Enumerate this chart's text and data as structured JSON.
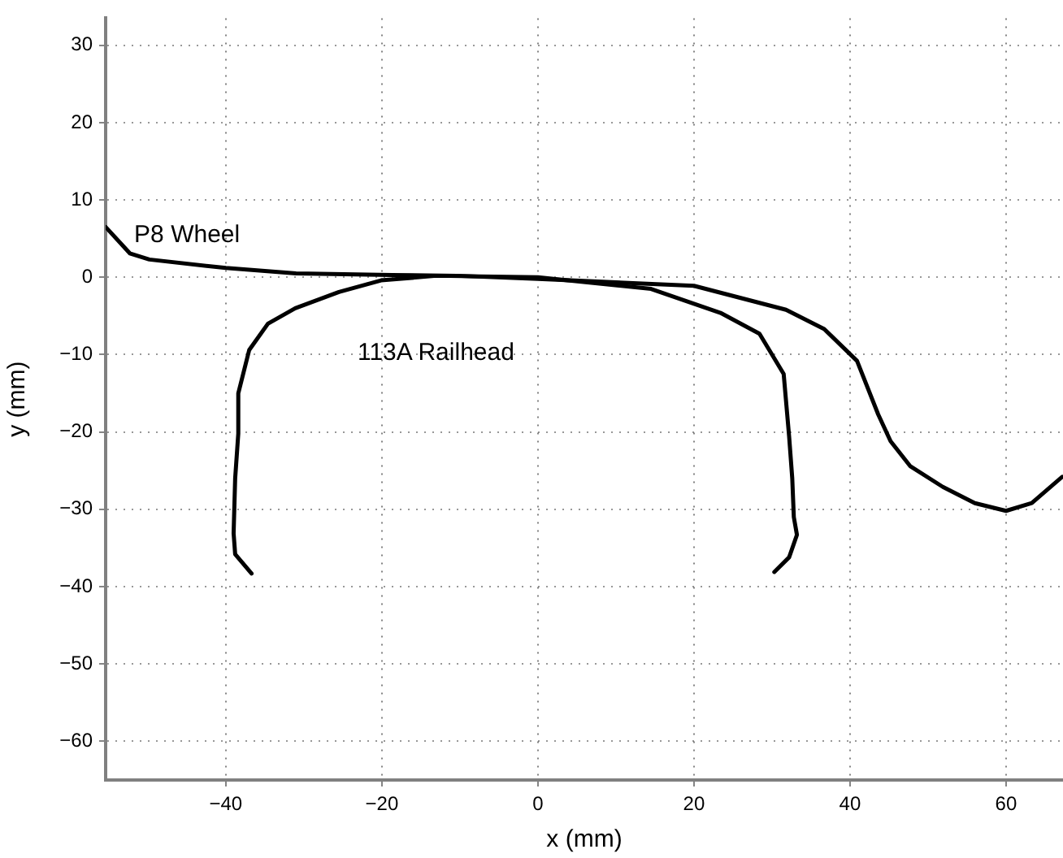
{
  "chart_data": {
    "type": "line",
    "xlabel": "x (mm)",
    "ylabel": "y (mm)",
    "xlim": [
      -55.4,
      67.3
    ],
    "ylim": [
      -65,
      33.5
    ],
    "xticks": [
      -40,
      -20,
      0,
      20,
      40,
      60
    ],
    "yticks": [
      -60,
      -50,
      -40,
      -30,
      -20,
      -10,
      0,
      10,
      20,
      30
    ],
    "grid": true,
    "line_style": "solid",
    "marker": "none",
    "series": [
      {
        "name": "P8 Wheel",
        "color": "#000000",
        "x": [
          -55.4,
          -52.3,
          -49.8,
          -40,
          -31,
          -18.7,
          -10.4,
          0,
          20,
          31.8,
          36.7,
          40.9,
          43.6,
          45.2,
          47.7,
          51.9,
          56,
          60,
          63.3,
          67.2
        ],
        "values": [
          6.5,
          3.1,
          2.3,
          1.2,
          0.5,
          0.3,
          0.2,
          -0.2,
          -1.1,
          -4.2,
          -6.7,
          -10.8,
          -17.7,
          -21.2,
          -24.4,
          -27.1,
          -29.2,
          -30.2,
          -29.2,
          -25.8
        ]
      },
      {
        "name": "113A Railhead",
        "color": "#000000",
        "x": [
          -36.7,
          -38.8,
          -39,
          -38.8,
          -38.4,
          -38.4,
          -37,
          -34.6,
          -31.1,
          -25.5,
          -20.1,
          -13,
          0,
          14.5,
          23.4,
          28.4,
          31.5,
          32.2,
          32.6,
          32.8,
          33.2,
          32.2,
          30.3
        ],
        "values": [
          -38.3,
          -35.8,
          -33.1,
          -26,
          -20.2,
          -15,
          -9.4,
          -6,
          -4,
          -1.9,
          -0.4,
          0.2,
          0,
          -1.5,
          -4.6,
          -7.3,
          -12.5,
          -20.6,
          -26,
          -31,
          -33.3,
          -36.2,
          -38.1
        ]
      }
    ]
  }
}
